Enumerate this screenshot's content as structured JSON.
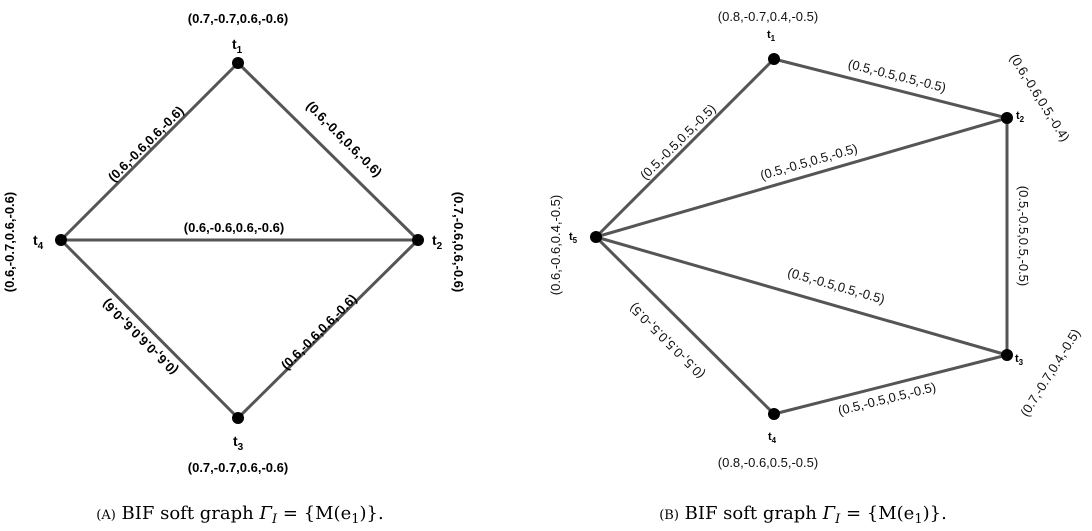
{
  "graph_a": {
    "vertices": {
      "t1": {
        "letter": "t",
        "index": "1",
        "value": "(0.7,-0.7,0.6,-0.6)"
      },
      "t2": {
        "letter": "t",
        "index": "2",
        "value": "(0.7,-0.6,0.6,-0.6)"
      },
      "t3": {
        "letter": "t",
        "index": "3",
        "value": "(0.7,-0.7,0.6,-0.6)"
      },
      "t4": {
        "letter": "t",
        "index": "4",
        "value": "(0.6,-0.7,0.6,-0.6)"
      }
    },
    "edges": {
      "t4_t1": "(0.6,-0.6,0.6,-0.6)",
      "t1_t2": "(0.6,-0.6,0.6,-0.6)",
      "t4_t2": "(0.6,-0.6,0.6,-0.6)",
      "t4_t3": "(0.6,-0.6,0.6,-0.6)",
      "t3_t2": "(0.6,-0.6,0.6,-0.6)"
    },
    "caption": {
      "tag": "(A)",
      "text": "BIF soft graph",
      "formula_lhs": "Γ",
      "formula_sub": "I",
      "formula_rhs": " = {M(e",
      "formula_sub2": "1",
      "formula_end": ")}."
    }
  },
  "graph_b": {
    "vertices": {
      "t1": {
        "letter": "t",
        "index": "1",
        "value": "(0.8,-0.7,0.4,-0.5)"
      },
      "t2": {
        "letter": "t",
        "index": "2",
        "value": "(0.6,-0.6,0.5,-0.4)"
      },
      "t3": {
        "letter": "t",
        "index": "3",
        "value": "(0.7,-0.7,0.4,-0.5)"
      },
      "t4": {
        "letter": "t",
        "index": "4",
        "value": "(0.8,-0.6,0.5,-0.5)"
      },
      "t5": {
        "letter": "t",
        "index": "5",
        "value": "(0.6,-0.6,0.4,-0.5)"
      }
    },
    "edges": {
      "t5_t1": "(0.5,-0.5,0.5,-0.5)",
      "t1_t2": "(0.5,-0.5,0.5,-0.5)",
      "t5_t2": "(0.5,-0.5,0.5,-0.5)",
      "t2_t3": "(0.5,-0.5,0.5,-0.5)",
      "t5_t3": "(0.5,-0.5,0.5,-0.5)",
      "t5_t4": "(0.5,-0.5,0.5,-0.5)",
      "t4_t3": "(0.5,-0.5,0.5,-0.5)"
    },
    "caption": {
      "tag": "(B)",
      "text": "BIF soft graph",
      "formula_lhs": "Γ",
      "formula_sub": "I",
      "formula_rhs": " = {M(e",
      "formula_sub2": "1",
      "formula_end": ")}."
    }
  }
}
